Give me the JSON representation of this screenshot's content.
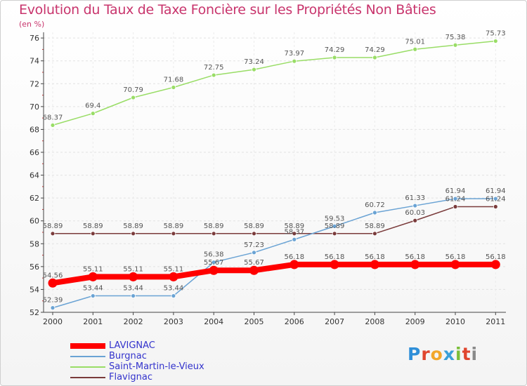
{
  "header": {
    "title": "Evolution du Taux de Taxe Foncière sur les Propriétés Non Bâties",
    "unit": "(en %)"
  },
  "logo": {
    "letters": [
      "P",
      "r",
      "o",
      "x",
      "i",
      "t",
      "i"
    ]
  },
  "colors": {
    "lavignac": "#ff0000",
    "burgnac": "#6aa3d4",
    "saint_martin": "#99dd66",
    "flavignac": "#7a3b3b"
  },
  "chart_data": {
    "type": "line",
    "title": "Evolution du Taux de Taxe Foncière sur les Propriétés Non Bâties",
    "ylabel": "(en %)",
    "xlabel": "",
    "x": [
      "2000",
      "2001",
      "2002",
      "2003",
      "2004",
      "2005",
      "2006",
      "2007",
      "2008",
      "2009",
      "2010",
      "2011"
    ],
    "ylim": [
      52,
      76.5
    ],
    "yticks": [
      52,
      54,
      56,
      58,
      60,
      62,
      64,
      66,
      68,
      70,
      72,
      74,
      76
    ],
    "grid": true,
    "legend": "bottom-left",
    "series": [
      {
        "name": "LAVIGNAC",
        "key": "lavignac",
        "values": [
          54.56,
          55.11,
          55.11,
          55.11,
          55.67,
          55.67,
          56.18,
          56.18,
          56.18,
          56.18,
          56.18,
          56.18
        ],
        "labels": [
          "54.56",
          "55.11",
          "55.11",
          "55.11",
          "55.67",
          "55.67",
          "56.18",
          "56.18",
          "56.18",
          "56.18",
          "56.18",
          "56.18"
        ]
      },
      {
        "name": "Burgnac",
        "key": "burgnac",
        "values": [
          52.39,
          53.44,
          53.44,
          53.44,
          56.38,
          57.23,
          58.37,
          59.53,
          60.72,
          61.33,
          61.94,
          61.94
        ],
        "labels": [
          "52.39",
          "53.44",
          "53.44",
          "53.44",
          "56.38",
          "57.23",
          "58.37",
          "59.53",
          "60.72",
          "61.33",
          "61.94",
          "61.94"
        ]
      },
      {
        "name": "Saint-Martin-le-Vieux",
        "key": "saint_martin",
        "values": [
          68.37,
          69.4,
          70.79,
          71.68,
          72.75,
          73.24,
          73.97,
          74.29,
          74.29,
          75.01,
          75.38,
          75.73
        ],
        "labels": [
          "68.37",
          "69.4",
          "70.79",
          "71.68",
          "72.75",
          "73.24",
          "73.97",
          "74.29",
          "74.29",
          "75.01",
          "75.38",
          "75.73"
        ]
      },
      {
        "name": "Flavignac",
        "key": "flavignac",
        "values": [
          58.89,
          58.89,
          58.89,
          58.89,
          58.89,
          58.89,
          58.89,
          58.89,
          58.89,
          60.03,
          61.24,
          61.24
        ],
        "labels": [
          "58.89",
          "58.89",
          "58.89",
          "58.89",
          "58.89",
          "58.89",
          "58.89",
          "58.89",
          "58.89",
          "60.03",
          "61.24",
          "61.24"
        ]
      }
    ]
  }
}
